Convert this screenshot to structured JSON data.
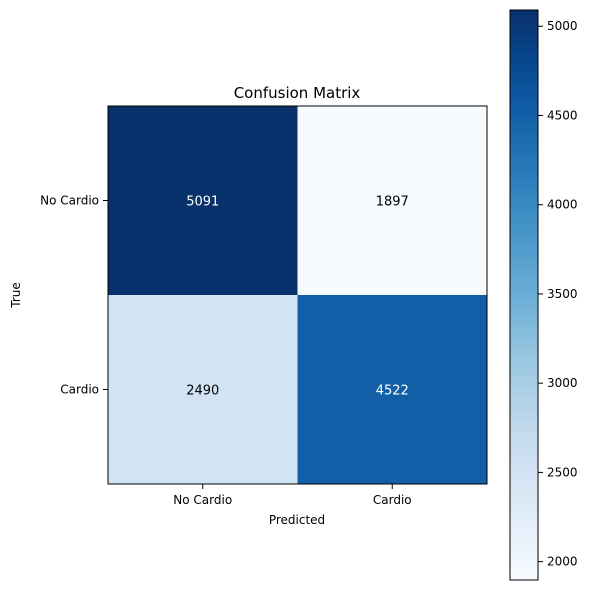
{
  "chart_data": {
    "type": "heatmap",
    "title": "Confusion Matrix",
    "xlabel": "Predicted",
    "ylabel": "True",
    "x_categories": [
      "No Cardio",
      "Cardio"
    ],
    "y_categories": [
      "No Cardio",
      "Cardio"
    ],
    "values": [
      [
        5091,
        1897
      ],
      [
        2490,
        4522
      ]
    ],
    "colormap": "Blues",
    "colorbar": {
      "min": 1897,
      "max": 5091,
      "ticks": [
        2000,
        2500,
        3000,
        3500,
        4000,
        4500,
        5000
      ]
    },
    "grid": false
  }
}
